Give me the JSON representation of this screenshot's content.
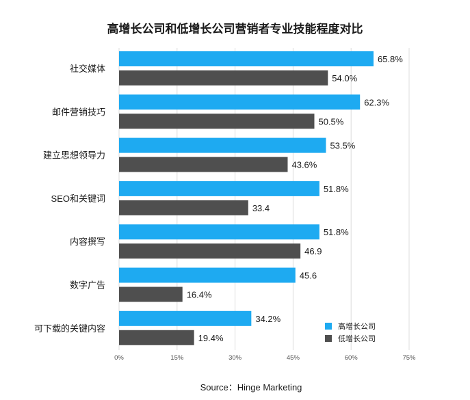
{
  "chart_data": {
    "type": "bar",
    "orientation": "horizontal",
    "title": "高增长公司和低增长公司营销者专业技能程度对比",
    "categories": [
      "社交媒体",
      "邮件营销技巧",
      "建立思想领导力",
      "SEO和关键词",
      "内容撰写",
      "数字广告",
      "可下载的关键内容"
    ],
    "series": [
      {
        "name": "高增长公司",
        "color": "#1eaaf1",
        "values": [
          65.8,
          62.3,
          53.5,
          51.8,
          51.8,
          45.6,
          34.2
        ],
        "labels": [
          "65.8%",
          "62.3%",
          "53.5%",
          "51.8%",
          "51.8%",
          "45.6",
          "34.2%"
        ]
      },
      {
        "name": "低增长公司",
        "color": "#4f4f4f",
        "values": [
          54.0,
          50.5,
          43.6,
          33.4,
          46.9,
          16.4,
          19.4
        ],
        "labels": [
          "54.0%",
          "50.5%",
          "43.6%",
          "33.4",
          "46.9",
          "16.4%",
          "19.4%"
        ]
      }
    ],
    "xlim": [
      0,
      75
    ],
    "xticks": [
      "0%",
      "15%",
      "30%",
      "45%",
      "60%",
      "75%"
    ],
    "xtick_values": [
      0,
      15,
      30,
      45,
      60,
      75
    ],
    "xlabel": "",
    "ylabel": "",
    "grid": "vertical",
    "legend_position": "bottom-right"
  },
  "source": "Source：Hinge Marketing"
}
